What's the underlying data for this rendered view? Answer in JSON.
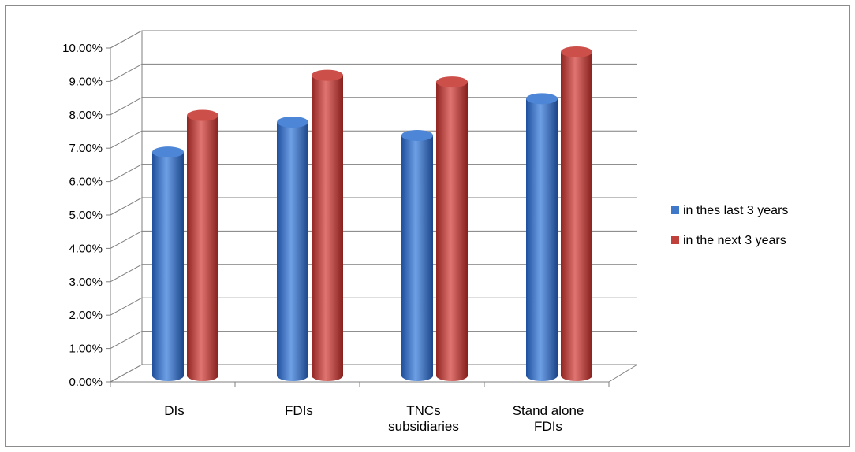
{
  "chart_data": {
    "type": "bar",
    "categories": [
      "DIs",
      "FDIs",
      "TNCs subsidiaries",
      "Stand alone FDIs"
    ],
    "series": [
      {
        "name": "in thes last 3 years",
        "values": [
          0.066,
          0.075,
          0.071,
          0.082
        ],
        "color": "#3f78c8"
      },
      {
        "name": "in the next 3 years",
        "values": [
          0.077,
          0.089,
          0.087,
          0.096
        ],
        "color": "#c0403c"
      }
    ],
    "ylim": [
      0,
      0.1
    ],
    "yticks": [
      "0.00%",
      "1.00%",
      "2.00%",
      "3.00%",
      "4.00%",
      "5.00%",
      "6.00%",
      "7.00%",
      "8.00%",
      "9.00%",
      "10.00%"
    ],
    "grid": true,
    "style": "3d-cylinder",
    "legend_position": "right"
  }
}
